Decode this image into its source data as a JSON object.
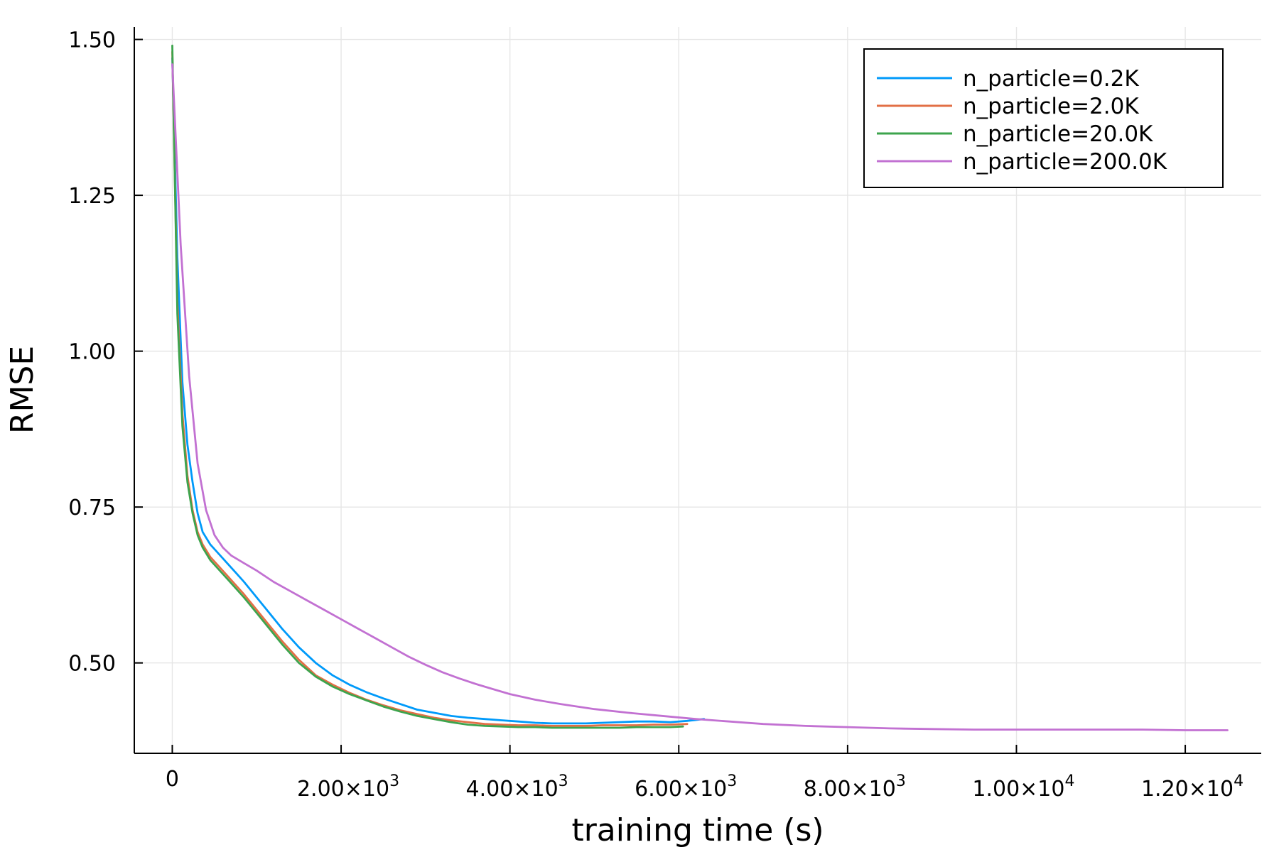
{
  "chart_data": {
    "type": "line",
    "xlabel": "training time (s)",
    "ylabel": "RMSE",
    "xlim": [
      -450,
      12900
    ],
    "ylim": [
      0.355,
      1.52
    ],
    "grid": true,
    "legend_position": "top-right",
    "x_ticks": [
      {
        "value": 0,
        "mantissa": "0",
        "exponent": ""
      },
      {
        "value": 2000,
        "mantissa": "2.00×10",
        "exponent": "3"
      },
      {
        "value": 4000,
        "mantissa": "4.00×10",
        "exponent": "3"
      },
      {
        "value": 6000,
        "mantissa": "6.00×10",
        "exponent": "3"
      },
      {
        "value": 8000,
        "mantissa": "8.00×10",
        "exponent": "3"
      },
      {
        "value": 10000,
        "mantissa": "1.00×10",
        "exponent": "4"
      },
      {
        "value": 12000,
        "mantissa": "1.20×10",
        "exponent": "4"
      }
    ],
    "y_ticks": [
      {
        "value": 0.5,
        "label": "0.50"
      },
      {
        "value": 0.75,
        "label": "0.75"
      },
      {
        "value": 1.0,
        "label": "1.00"
      },
      {
        "value": 1.25,
        "label": "1.25"
      },
      {
        "value": 1.5,
        "label": "1.50"
      }
    ],
    "series": [
      {
        "name": "n_particle=0.2K",
        "color": "#009afa",
        "x": [
          0,
          60,
          120,
          180,
          240,
          300,
          360,
          450,
          550,
          650,
          750,
          850,
          1000,
          1150,
          1300,
          1500,
          1700,
          1900,
          2100,
          2300,
          2500,
          2700,
          2900,
          3100,
          3300,
          3500,
          3700,
          3900,
          4100,
          4300,
          4500,
          4700,
          4900,
          5100,
          5300,
          5500,
          5700,
          5900,
          6100,
          6300
        ],
        "y": [
          1.47,
          1.15,
          0.95,
          0.85,
          0.79,
          0.74,
          0.71,
          0.69,
          0.675,
          0.66,
          0.645,
          0.63,
          0.605,
          0.58,
          0.555,
          0.525,
          0.5,
          0.48,
          0.465,
          0.453,
          0.443,
          0.434,
          0.425,
          0.42,
          0.415,
          0.412,
          0.41,
          0.408,
          0.406,
          0.404,
          0.403,
          0.403,
          0.403,
          0.404,
          0.405,
          0.406,
          0.406,
          0.405,
          0.407,
          0.41
        ]
      },
      {
        "name": "n_particle=2.0K",
        "color": "#e26f46",
        "x": [
          0,
          60,
          120,
          180,
          240,
          300,
          360,
          450,
          550,
          650,
          750,
          850,
          1000,
          1150,
          1300,
          1500,
          1700,
          1900,
          2100,
          2300,
          2500,
          2700,
          2900,
          3100,
          3300,
          3500,
          3700,
          3900,
          4100,
          4300,
          4500,
          4700,
          4900,
          5100,
          5300,
          5500,
          5700,
          5900,
          6100
        ],
        "y": [
          1.48,
          1.08,
          0.9,
          0.8,
          0.745,
          0.71,
          0.69,
          0.67,
          0.655,
          0.64,
          0.625,
          0.61,
          0.585,
          0.56,
          0.535,
          0.505,
          0.48,
          0.465,
          0.452,
          0.441,
          0.432,
          0.424,
          0.418,
          0.412,
          0.408,
          0.405,
          0.402,
          0.401,
          0.4,
          0.4,
          0.399,
          0.399,
          0.399,
          0.4,
          0.4,
          0.4,
          0.401,
          0.401,
          0.402
        ]
      },
      {
        "name": "n_particle=20.0K",
        "color": "#3da44d",
        "x": [
          0,
          60,
          120,
          180,
          240,
          300,
          360,
          450,
          550,
          650,
          750,
          850,
          1000,
          1150,
          1300,
          1500,
          1700,
          1900,
          2100,
          2300,
          2500,
          2700,
          2900,
          3100,
          3300,
          3500,
          3700,
          3900,
          4100,
          4300,
          4500,
          4700,
          4900,
          5100,
          5300,
          5500,
          5700,
          5900,
          6050
        ],
        "y": [
          1.49,
          1.06,
          0.88,
          0.79,
          0.74,
          0.705,
          0.685,
          0.665,
          0.65,
          0.635,
          0.62,
          0.605,
          0.58,
          0.555,
          0.53,
          0.5,
          0.478,
          0.462,
          0.45,
          0.44,
          0.43,
          0.422,
          0.415,
          0.41,
          0.405,
          0.401,
          0.399,
          0.398,
          0.397,
          0.397,
          0.396,
          0.396,
          0.396,
          0.396,
          0.396,
          0.397,
          0.397,
          0.397,
          0.398
        ]
      },
      {
        "name": "n_particle=200.0K",
        "color": "#c271d2",
        "x": [
          0,
          100,
          200,
          300,
          400,
          500,
          600,
          700,
          850,
          1000,
          1200,
          1400,
          1600,
          1800,
          2000,
          2200,
          2400,
          2600,
          2800,
          3000,
          3200,
          3400,
          3600,
          3800,
          4000,
          4300,
          4600,
          5000,
          5400,
          5800,
          6200,
          6600,
          7000,
          7500,
          8000,
          8500,
          9000,
          9500,
          10000,
          10500,
          11000,
          11500,
          12000,
          12500
        ],
        "y": [
          1.46,
          1.17,
          0.96,
          0.82,
          0.745,
          0.705,
          0.685,
          0.672,
          0.66,
          0.648,
          0.63,
          0.615,
          0.6,
          0.585,
          0.57,
          0.555,
          0.54,
          0.525,
          0.51,
          0.497,
          0.485,
          0.475,
          0.466,
          0.458,
          0.45,
          0.441,
          0.434,
          0.426,
          0.42,
          0.415,
          0.41,
          0.406,
          0.402,
          0.399,
          0.397,
          0.395,
          0.394,
          0.393,
          0.393,
          0.393,
          0.393,
          0.393,
          0.392,
          0.392
        ]
      }
    ]
  }
}
